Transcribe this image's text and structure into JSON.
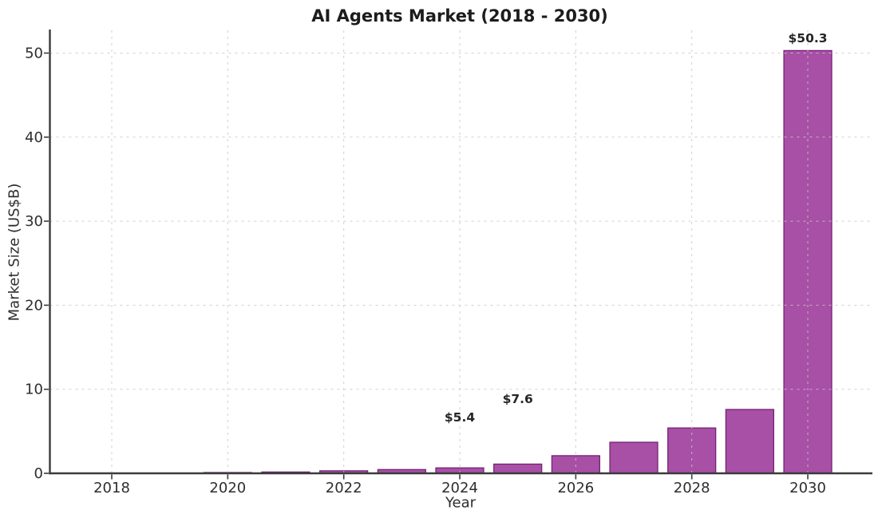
{
  "chart_data": {
    "type": "bar",
    "title": "AI Agents Market (2018 - 2030)",
    "xlabel": "Year",
    "ylabel": "Market Size (US$B)",
    "categories": [
      2018,
      2019,
      2020,
      2021,
      2022,
      2023,
      2024,
      2025,
      2026,
      2027,
      2028,
      2029,
      2030
    ],
    "values": [
      0.02,
      0.05,
      0.1,
      0.16,
      0.3,
      0.45,
      0.65,
      1.1,
      2.1,
      3.7,
      5.4,
      7.6,
      50.3
    ],
    "x_ticks": [
      2018,
      2020,
      2022,
      2024,
      2026,
      2028,
      2030
    ],
    "y_ticks": [
      0,
      10,
      20,
      30,
      40,
      50
    ],
    "xlim": [
      2016.9,
      2031.1
    ],
    "ylim": [
      0,
      52.7
    ],
    "grid": true,
    "grid_style": "dashed, both axes, drawn over bars",
    "legend_position": "none",
    "annotations": [
      {
        "label": "$5.4",
        "x": 2024,
        "y": 6.7
      },
      {
        "label": "$7.6",
        "x": 2025,
        "y": 8.9
      },
      {
        "label": "$50.3",
        "x": 2030,
        "y": 51.8
      }
    ],
    "colors": {
      "bar_fill": "#a84fa6",
      "bar_edge": "#701c6e",
      "grid": "#c8c8c8",
      "spine": "#3b3b3b",
      "tick_text": "#2e2e2e",
      "title_text": "#1c1c1c",
      "annotation_text": "#262626",
      "background": "#ffffff"
    }
  }
}
